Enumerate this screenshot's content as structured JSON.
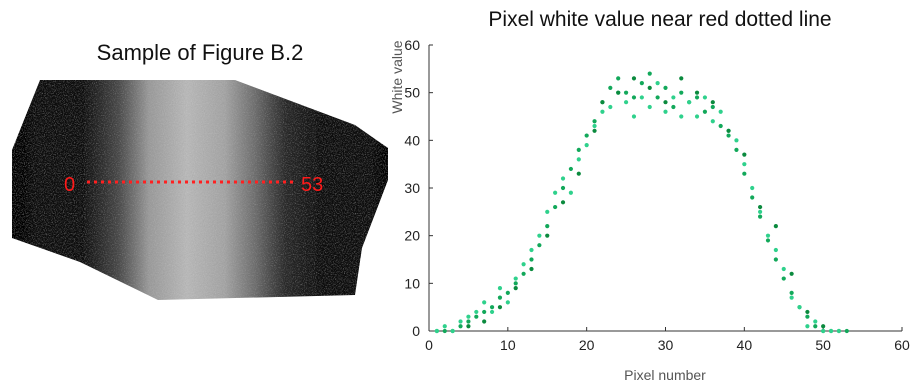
{
  "sample": {
    "title": "Sample of Figure B.2",
    "line_start_label": "0",
    "line_end_label": "53",
    "line_color": "#ff2020"
  },
  "chart_data": {
    "type": "scatter",
    "title": "Pixel white value near red dotted line",
    "xlabel": "Pixel number",
    "ylabel": "White value",
    "xlim": [
      0,
      60
    ],
    "ylim": [
      0,
      60
    ],
    "xticks": [
      0,
      10,
      20,
      30,
      40,
      50,
      60
    ],
    "yticks": [
      0,
      10,
      20,
      30,
      40,
      50,
      60
    ],
    "grid": false,
    "series": [
      {
        "color": "#12a85a",
        "x": [
          1,
          2,
          3,
          4,
          5,
          6,
          7,
          8,
          9,
          10,
          11,
          12,
          13,
          14,
          15,
          16,
          17,
          18,
          19,
          20,
          21,
          22,
          23,
          24,
          25,
          26,
          27,
          28,
          29,
          30,
          31,
          32,
          33,
          34,
          35,
          36,
          37,
          38,
          39,
          40,
          41,
          42,
          43,
          44,
          45,
          46,
          47,
          48,
          49,
          50,
          51,
          52,
          53
        ],
        "y": [
          0,
          0,
          0,
          1,
          2,
          3,
          4,
          5,
          7,
          8,
          10,
          12,
          15,
          18,
          22,
          26,
          30,
          34,
          38,
          41,
          44,
          48,
          51,
          53,
          50,
          49,
          52,
          54,
          49,
          51,
          47,
          50,
          48,
          49,
          46,
          47,
          43,
          41,
          38,
          33,
          28,
          24,
          19,
          15,
          11,
          8,
          5,
          3,
          1,
          0,
          0,
          0,
          0
        ]
      },
      {
        "color": "#2fd18c",
        "x": [
          1,
          2,
          3,
          4,
          5,
          6,
          7,
          8,
          9,
          10,
          11,
          12,
          13,
          14,
          15,
          16,
          17,
          18,
          19,
          20,
          21,
          22,
          23,
          24,
          25,
          26,
          27,
          28,
          29,
          30,
          31,
          32,
          33,
          34,
          35,
          36,
          37,
          38,
          39,
          40,
          41,
          42,
          43,
          44,
          45,
          46,
          47,
          48,
          49,
          50,
          51,
          52
        ],
        "y": [
          0,
          1,
          0,
          2,
          3,
          4,
          6,
          4,
          9,
          6,
          11,
          14,
          17,
          20,
          25,
          29,
          32,
          29,
          36,
          39,
          43,
          46,
          47,
          50,
          48,
          45,
          49,
          47,
          52,
          46,
          49,
          45,
          48,
          45,
          49,
          44,
          46,
          42,
          40,
          35,
          30,
          25,
          20,
          17,
          13,
          7,
          5,
          1,
          2,
          0,
          0,
          0
        ]
      },
      {
        "color": "#0b8a3e",
        "x": [
          5,
          7,
          9,
          11,
          13,
          15,
          17,
          19,
          21,
          22,
          24,
          26,
          28,
          30,
          32,
          34,
          36,
          38,
          40,
          42,
          44,
          46,
          48,
          50
        ],
        "y": [
          1,
          2,
          5,
          9,
          13,
          20,
          27,
          33,
          42,
          48,
          50,
          53,
          51,
          48,
          53,
          50,
          48,
          42,
          37,
          26,
          22,
          12,
          4,
          1
        ]
      }
    ]
  }
}
